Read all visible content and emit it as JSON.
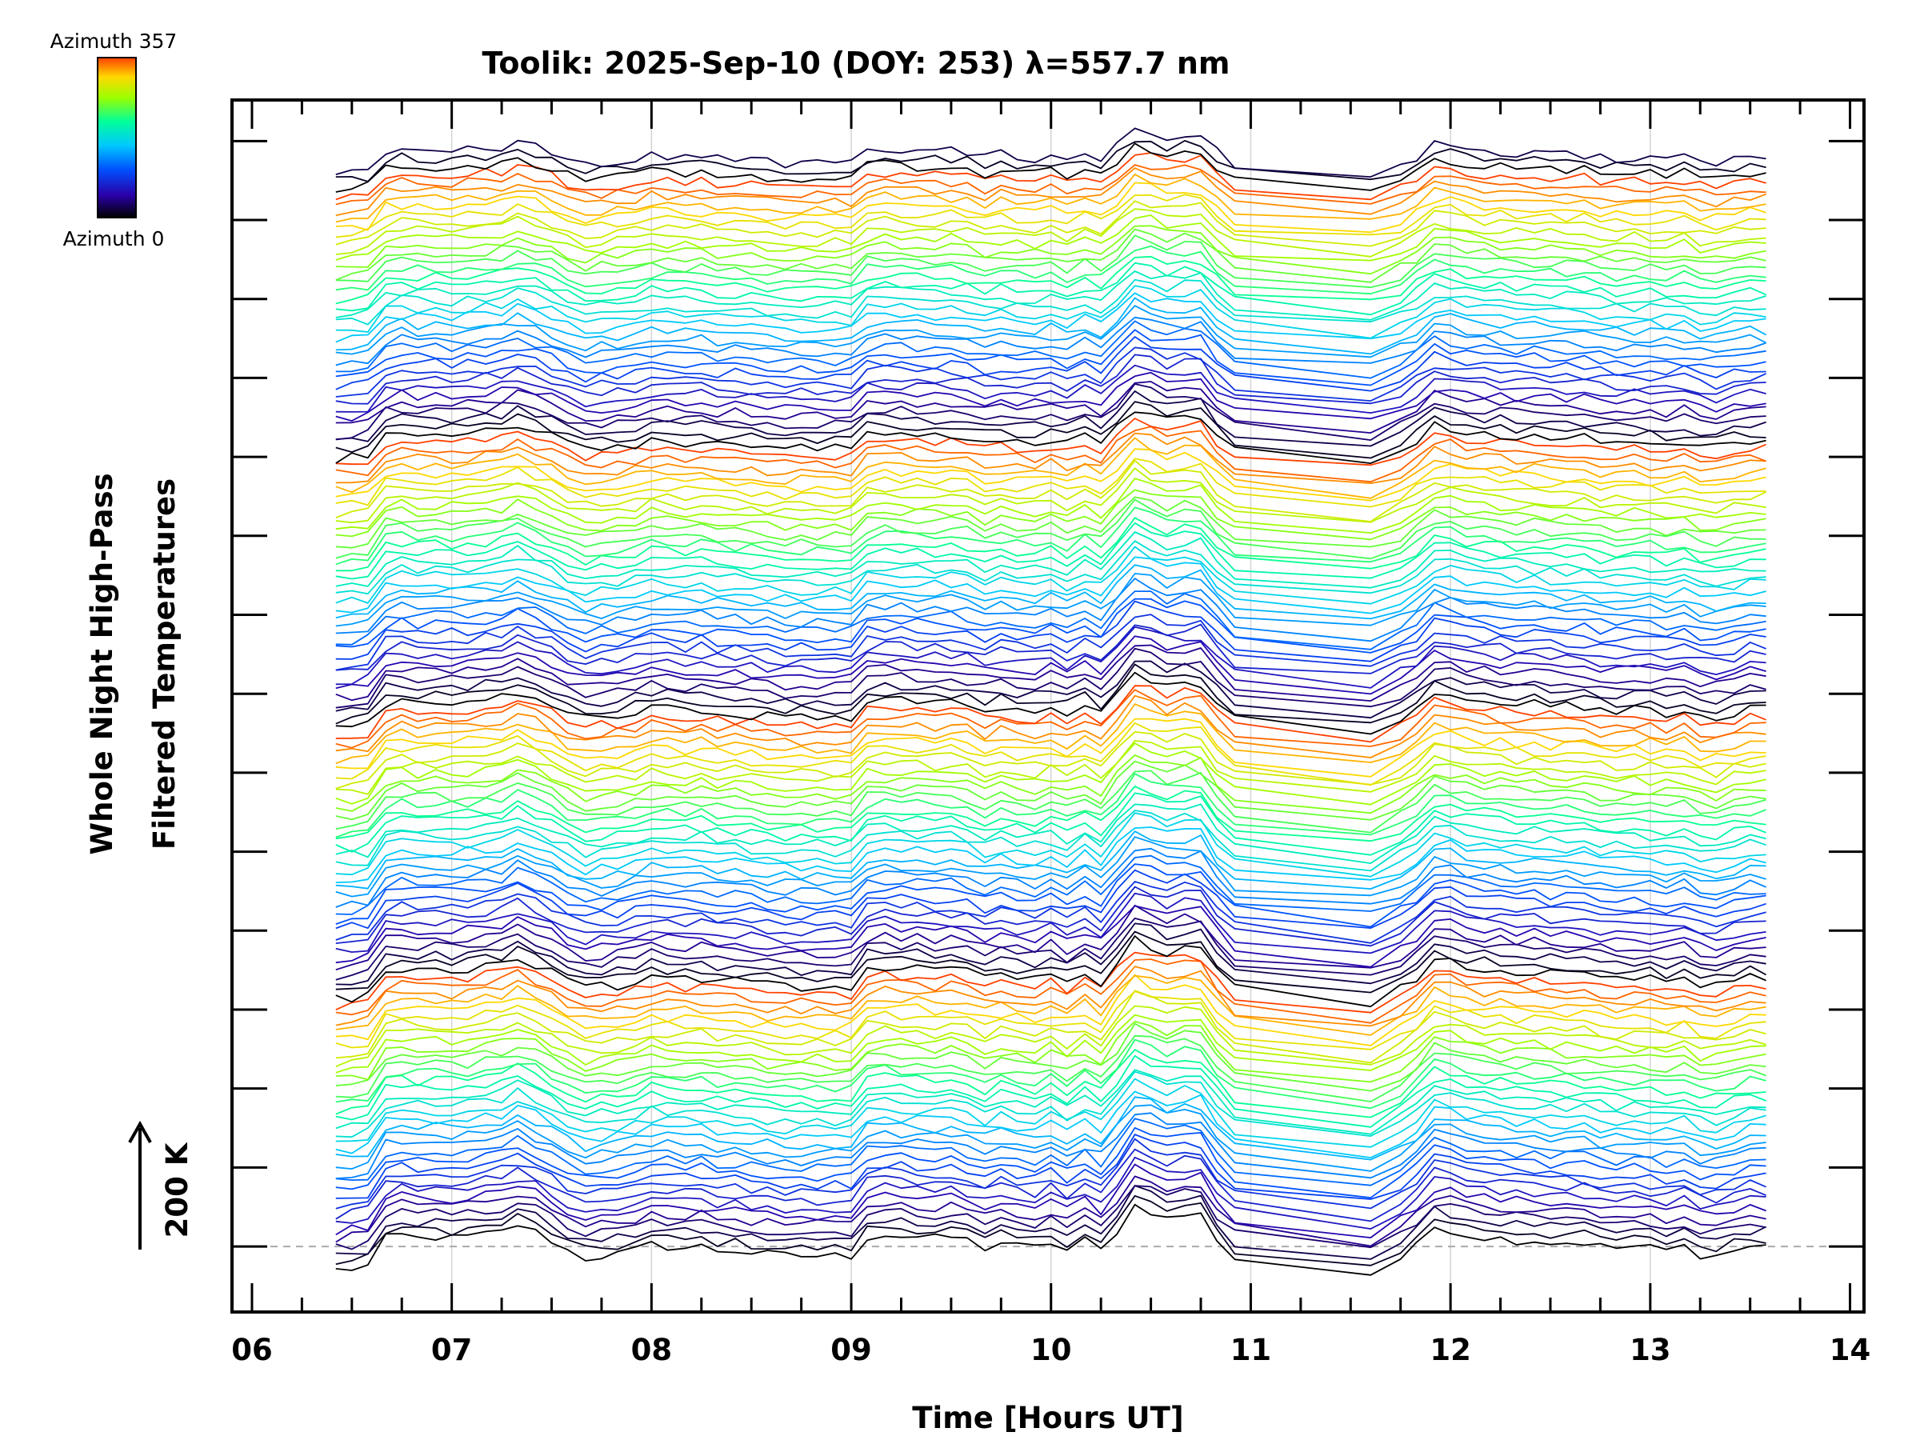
{
  "chart_data": {
    "type": "line",
    "title": "Toolik: 2025-Sep-10 (DOY: 253) λ=557.7 nm",
    "xlabel": "Time [Hours UT]",
    "ylabel": [
      "Whole Night High-Pass",
      "Filtered Temperatures"
    ],
    "scale_bar": {
      "label": "200 K",
      "value_K": 200
    },
    "x_ticks": [
      "06",
      "07",
      "08",
      "09",
      "10",
      "11",
      "12",
      "13",
      "14"
    ],
    "xlim": [
      5.9,
      14.07
    ],
    "ylim": [
      -0.83,
      14.52
    ],
    "y_major_ticks_count": 15,
    "grid": true,
    "baseline_dashed": true,
    "colorbar": {
      "top_label": "Azimuth 357",
      "bottom_label": "Azimuth 0",
      "colormap": [
        "#000000",
        "#2a00a8",
        "#0050ff",
        "#00c8ff",
        "#00ff9a",
        "#9cff00",
        "#ffd800",
        "#ff4000"
      ]
    },
    "series_description": "Stacked high-pass filtered temperature traces, one per azimuth (0 to 357 deg), offset vertically",
    "n_series": 139,
    "x": [
      6.42,
      6.5,
      6.58,
      6.67,
      6.75,
      6.83,
      6.92,
      7.0,
      7.08,
      7.17,
      7.25,
      7.33,
      7.42,
      7.5,
      7.58,
      7.67,
      7.75,
      7.83,
      7.92,
      8.0,
      8.08,
      8.17,
      8.25,
      8.33,
      8.42,
      8.5,
      8.58,
      8.67,
      8.75,
      8.83,
      8.92,
      9.0,
      9.08,
      9.17,
      9.25,
      9.33,
      9.42,
      9.5,
      9.58,
      9.67,
      9.75,
      9.83,
      9.92,
      10.0,
      10.08,
      10.17,
      10.25,
      10.33,
      10.42,
      10.5,
      10.58,
      10.67,
      10.75,
      10.83,
      10.92,
      11.6,
      11.75,
      11.83,
      11.92,
      12.0,
      12.08,
      12.17,
      12.25,
      12.33,
      12.42,
      12.5,
      12.58,
      12.67,
      12.75,
      12.83,
      12.92,
      13.0,
      13.08,
      13.17,
      13.25,
      13.33,
      13.42,
      13.5,
      13.58
    ],
    "base_profile": [
      -0.3,
      -0.28,
      -0.25,
      0.1,
      0.14,
      0.1,
      0.12,
      0.1,
      0.12,
      0.15,
      0.18,
      0.28,
      0.18,
      0.08,
      -0.05,
      -0.15,
      -0.12,
      -0.1,
      -0.05,
      0.02,
      0.0,
      -0.02,
      0.0,
      -0.05,
      -0.05,
      -0.08,
      -0.1,
      -0.12,
      -0.12,
      -0.12,
      -0.12,
      -0.12,
      0.12,
      0.15,
      0.13,
      0.12,
      0.1,
      0.12,
      0.08,
      -0.02,
      0.05,
      0.0,
      -0.02,
      0.05,
      -0.05,
      0.08,
      -0.05,
      0.2,
      0.52,
      0.45,
      0.35,
      0.4,
      0.4,
      0.1,
      -0.15,
      -0.35,
      -0.15,
      0.0,
      0.25,
      0.22,
      0.15,
      0.12,
      0.1,
      0.08,
      0.08,
      0.05,
      0.05,
      0.05,
      0.0,
      -0.02,
      0.0,
      -0.02,
      -0.05,
      0.0,
      -0.1,
      -0.12,
      -0.05,
      0.0,
      0.0
    ],
    "series_offset_step": 0.1,
    "wiggle_amplitude": 0.06
  }
}
